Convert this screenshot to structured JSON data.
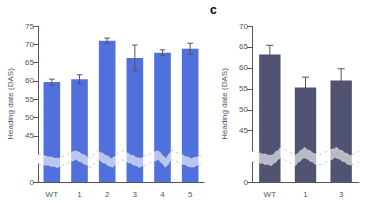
{
  "chart_data": [
    {
      "type": "bar",
      "categories": [
        "WT",
        "1",
        "2",
        "3",
        "4",
        "5"
      ],
      "values": [
        59.7,
        60.5,
        71.0,
        66.3,
        67.7,
        68.8
      ],
      "errors": [
        0.8,
        1.2,
        0.7,
        3.5,
        0.8,
        1.5
      ],
      "ylabel": "Heading date (DAS)",
      "ylim": [
        0,
        75
      ],
      "yticks": [
        0,
        45,
        50,
        55,
        60,
        65,
        70,
        75
      ],
      "grid": false
    },
    {
      "type": "bar",
      "annotation": "c",
      "categories": [
        "WT",
        "1",
        "3"
      ],
      "values": [
        63.2,
        55.3,
        57.0
      ],
      "errors": [
        2.2,
        2.5,
        2.8
      ],
      "ylabel": "Heading date (DAS)",
      "ylim": [
        0,
        70
      ],
      "yticks": [
        0,
        45,
        50,
        55,
        60,
        65,
        70
      ],
      "grid": false
    }
  ]
}
